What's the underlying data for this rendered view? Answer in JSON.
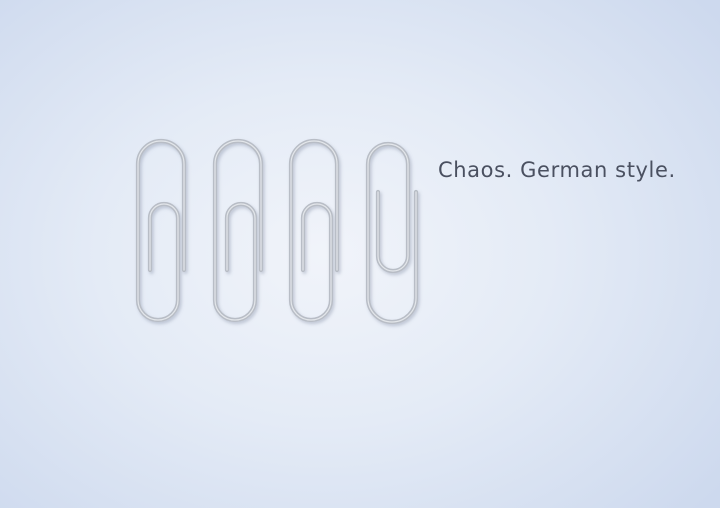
{
  "tagline": "Chaos. German style.",
  "colors": {
    "background_center": "#f1f4fa",
    "background_edge": "#cdd9ee",
    "clip_metal": "#a9afb8",
    "text": "#4a5060"
  },
  "icons": [
    "paperclip-icon",
    "paperclip-icon",
    "paperclip-icon",
    "paperclip-reversed-icon"
  ]
}
